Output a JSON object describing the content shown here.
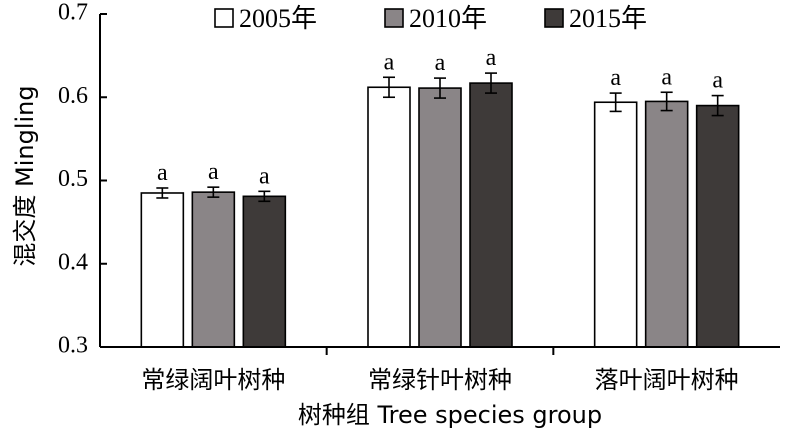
{
  "chart_data": {
    "type": "bar",
    "categories": [
      "常绿阔叶树种",
      "常绿针叶树种",
      "落叶阔叶树种"
    ],
    "series": [
      {
        "name": "2005年",
        "color": "#ffffff",
        "values": [
          0.485,
          0.612,
          0.594
        ],
        "errors": [
          0.006,
          0.012,
          0.011
        ],
        "labels": [
          "a",
          "a",
          "a"
        ]
      },
      {
        "name": "2010年",
        "color": "#8a8587",
        "values": [
          0.486,
          0.611,
          0.595
        ],
        "errors": [
          0.006,
          0.012,
          0.011
        ],
        "labels": [
          "a",
          "a",
          "a"
        ]
      },
      {
        "name": "2015年",
        "color": "#3e3a39",
        "values": [
          0.481,
          0.617,
          0.59
        ],
        "errors": [
          0.006,
          0.012,
          0.012
        ],
        "labels": [
          "a",
          "a",
          "a"
        ]
      }
    ],
    "xlabel": "树种组 Tree species group",
    "ylabel": "混交度 Mingling",
    "ylim": [
      0.3,
      0.7
    ],
    "yticks": [
      "0.3",
      "0.4",
      "0.5",
      "0.6",
      "0.7"
    ],
    "legend_position": "top",
    "grid": false
  }
}
